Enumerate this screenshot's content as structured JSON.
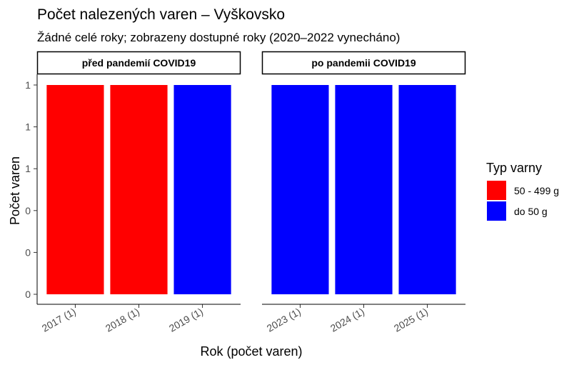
{
  "chart_data": {
    "type": "bar",
    "title": "Počet nalezených varen – Vyškovsko",
    "subtitle": "Žádné celé roky; zobrazeny dostupné roky (2020–2022 vynecháno)",
    "xlabel": "Rok (počet varen)",
    "ylabel": "Počet varen",
    "ylim": [
      0,
      1
    ],
    "y_tick_labels": [
      "0",
      "0",
      "0",
      "1",
      "1",
      "1"
    ],
    "y_tick_values": [
      0,
      0.2,
      0.4,
      0.6,
      0.8,
      1.0
    ],
    "panels": [
      {
        "label": "před pandemií COVID19",
        "categories": [
          "2017 (1)",
          "2018 (1)",
          "2019 (1)"
        ],
        "values": [
          1,
          1,
          1
        ],
        "types": [
          "50 - 499 g",
          "50 - 499 g",
          "do 50 g"
        ]
      },
      {
        "label": "po pandemii COVID19",
        "categories": [
          "2023 (1)",
          "2024 (1)",
          "2025 (1)"
        ],
        "values": [
          1,
          1,
          1
        ],
        "types": [
          "do 50 g",
          "do 50 g",
          "do 50 g"
        ]
      }
    ],
    "legend": {
      "title": "Typ varny",
      "position": "right",
      "entries": [
        {
          "label": "50 - 499 g",
          "color": "#ff0000"
        },
        {
          "label": "do 50 g",
          "color": "#0000ff"
        }
      ]
    },
    "grid": false
  }
}
